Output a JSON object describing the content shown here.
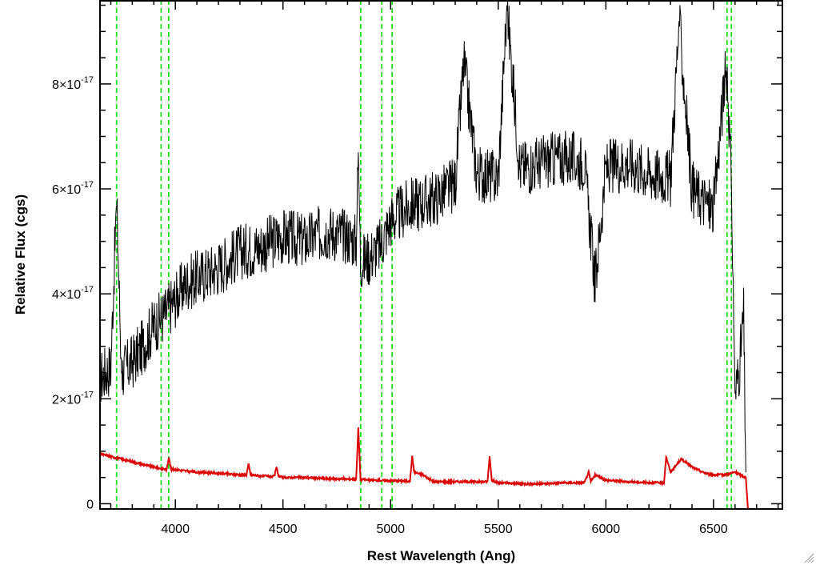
{
  "chart_data": {
    "type": "line",
    "xlabel": "Rest Wavelength (Ang)",
    "ylabel": "Relative Flux (cgs)",
    "xlim": [
      3650,
      6820
    ],
    "ylim": [
      -1e-18,
      9.6e-17
    ],
    "x_ticks": [
      4000,
      4500,
      5000,
      5500,
      6000,
      6500
    ],
    "y_ticks": [
      0,
      2e-17,
      4e-17,
      6e-17,
      8e-17
    ],
    "y_tick_labels": [
      {
        "mant": "0",
        "exp": ""
      },
      {
        "mant": "2×10",
        "exp": "-17"
      },
      {
        "mant": "4×10",
        "exp": "-17"
      },
      {
        "mant": "6×10",
        "exp": "-17"
      },
      {
        "mant": "8×10",
        "exp": "-17"
      }
    ],
    "reference_lines": [
      3727,
      3934,
      3969,
      4861,
      4959,
      5007,
      6563,
      6583
    ],
    "colors": {
      "spectrum": "#000000",
      "noise": "#dd0000",
      "lines": "#00dd00"
    },
    "series": [
      {
        "role": "spectrum",
        "x": [
          3650,
          3700,
          3727,
          3750,
          3800,
          3850,
          3900,
          3950,
          4000,
          4050,
          4100,
          4200,
          4300,
          4400,
          4500,
          4600,
          4700,
          4800,
          4840,
          4850,
          4860,
          4900,
          4950,
          5000,
          5100,
          5200,
          5300,
          5340,
          5400,
          5500,
          5540,
          5600,
          5700,
          5800,
          5900,
          5950,
          6000,
          6100,
          6200,
          6300,
          6340,
          6400,
          6500,
          6550,
          6563,
          6583,
          6600,
          6620,
          6640,
          6650
        ],
        "y": [
          2.4e-17,
          2.6e-17,
          5.8e-17,
          2.5e-17,
          2.7e-17,
          3e-17,
          3.4e-17,
          3.6e-17,
          3.9e-17,
          4.2e-17,
          4.3e-17,
          4.5e-17,
          4.8e-17,
          4.9e-17,
          5.1e-17,
          5e-17,
          5.2e-17,
          5.1e-17,
          5e-17,
          6.7e-17,
          4.6e-17,
          4.7e-17,
          4.9e-17,
          5.4e-17,
          5.7e-17,
          5.8e-17,
          6.1e-17,
          8.4e-17,
          6.3e-17,
          6.2e-17,
          9.5e-17,
          6.4e-17,
          6.5e-17,
          6.6e-17,
          6.5e-17,
          4.2e-17,
          6.4e-17,
          6.5e-17,
          6.3e-17,
          6.2e-17,
          9.2e-17,
          6e-17,
          5.6e-17,
          8e-17,
          8.3e-17,
          6.1e-17,
          2.1e-17,
          2.6e-17,
          3.6e-17,
          6e-18
        ]
      },
      {
        "role": "noise",
        "x": [
          3650,
          3700,
          3800,
          3900,
          3960,
          3970,
          3980,
          4000,
          4100,
          4200,
          4300,
          4330,
          4340,
          4350,
          4400,
          4460,
          4470,
          4480,
          4500,
          4600,
          4700,
          4800,
          4840,
          4850,
          4860,
          4900,
          5000,
          5090,
          5100,
          5110,
          5150,
          5200,
          5300,
          5400,
          5450,
          5460,
          5470,
          5500,
          5600,
          5700,
          5800,
          5900,
          5920,
          5930,
          5950,
          6000,
          6100,
          6200,
          6270,
          6280,
          6300,
          6350,
          6400,
          6450,
          6500,
          6550,
          6600,
          6650,
          6660,
          6820
        ],
        "y": [
          9.5e-18,
          9e-18,
          8e-18,
          7e-18,
          6.5e-18,
          9e-18,
          6.5e-18,
          6.5e-18,
          6e-18,
          5.8e-18,
          5.5e-18,
          5.5e-18,
          7.5e-18,
          5.5e-18,
          5.3e-18,
          5.2e-18,
          7e-18,
          5.2e-18,
          5e-18,
          5e-18,
          4.8e-18,
          4.7e-18,
          4.7e-18,
          1.45e-17,
          4.7e-18,
          4.5e-18,
          4.4e-18,
          4.3e-18,
          9e-18,
          6e-18,
          5.5e-18,
          4.2e-18,
          4.2e-18,
          4.2e-18,
          4.2e-18,
          9e-18,
          4.5e-18,
          4e-18,
          3.8e-18,
          3.8e-18,
          4e-18,
          4e-18,
          6e-18,
          4.2e-18,
          5.5e-18,
          4.5e-18,
          4.2e-18,
          4e-18,
          4e-18,
          9e-18,
          6e-18,
          8.5e-18,
          7e-18,
          6e-18,
          5.5e-18,
          5.5e-18,
          6e-18,
          5e-18,
          -1e-18,
          -1e-18
        ]
      }
    ]
  }
}
